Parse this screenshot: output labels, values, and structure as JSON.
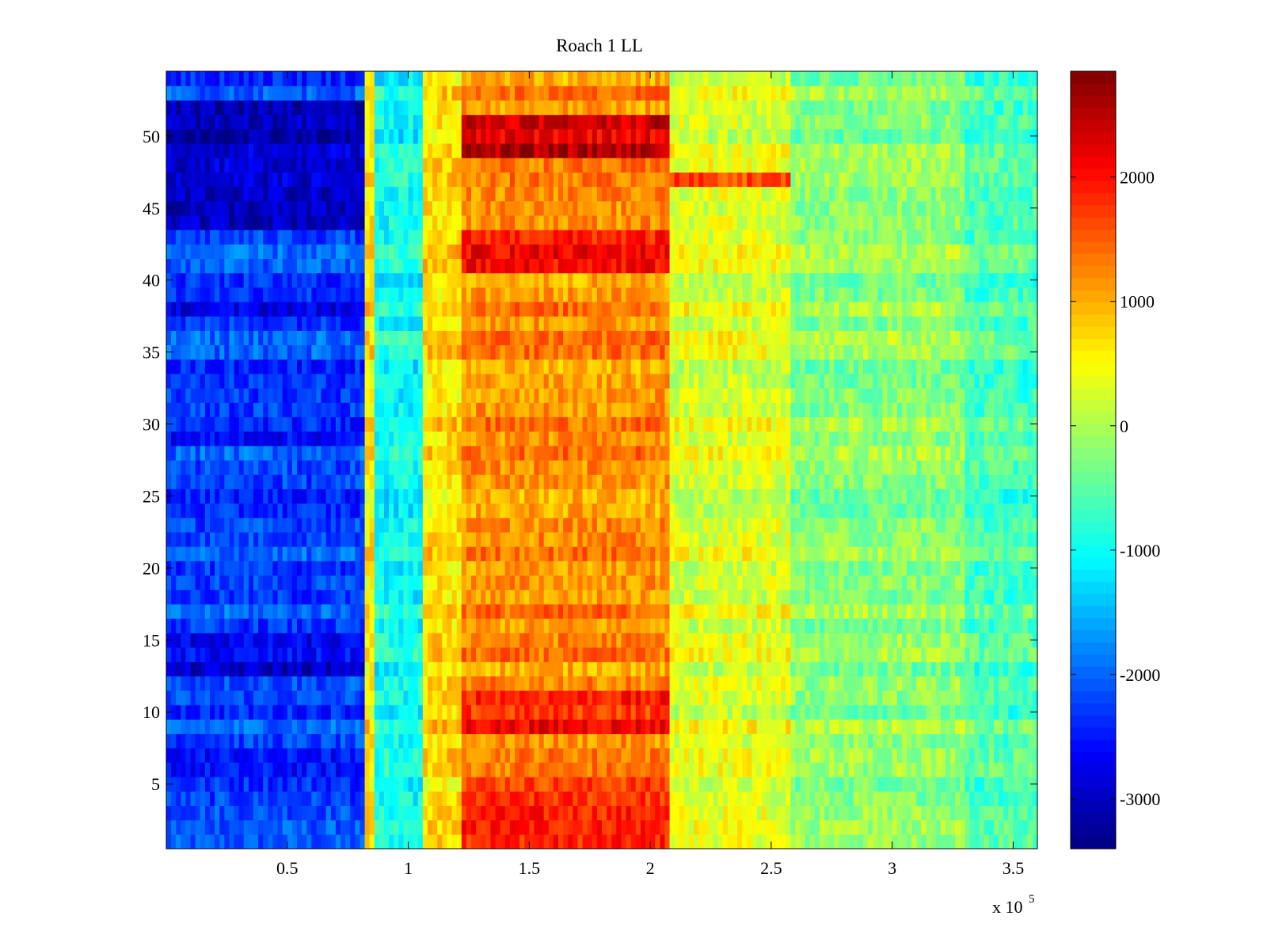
{
  "chart_data": {
    "type": "heatmap",
    "title": "Roach 1 LL",
    "xlabel": "",
    "ylabel": "",
    "x_multiplier_label": "x 10",
    "x_multiplier_exponent": "5",
    "xlim": [
      0,
      3.6
    ],
    "ylim": [
      0.5,
      54.5
    ],
    "xticks": [
      0.5,
      1,
      1.5,
      2,
      2.5,
      3,
      3.5
    ],
    "xtick_labels": [
      "0.5",
      "1",
      "1.5",
      "2",
      "2.5",
      "3",
      "3.5"
    ],
    "yticks": [
      5,
      10,
      15,
      20,
      25,
      30,
      35,
      40,
      45,
      50
    ],
    "ytick_labels": [
      "5",
      "10",
      "15",
      "20",
      "25",
      "30",
      "35",
      "40",
      "45",
      "50"
    ],
    "colorbar": {
      "colormap": "jet",
      "clim": [
        -3400,
        2850
      ],
      "ticks": [
        -3000,
        -2000,
        -1000,
        0,
        1000,
        2000
      ],
      "tick_labels": [
        "-3000",
        "-2000",
        "-1000",
        "0",
        "1000",
        "2000"
      ]
    },
    "rows": 54,
    "column_segments": [
      {
        "x_start": 0.0,
        "x_end": 0.82,
        "approx_value": -2200
      },
      {
        "x_start": 0.82,
        "x_end": 0.86,
        "approx_value": 600
      },
      {
        "x_start": 0.86,
        "x_end": 1.07,
        "approx_value": -1000
      },
      {
        "x_start": 1.07,
        "x_end": 1.23,
        "approx_value": 700
      },
      {
        "x_start": 1.23,
        "x_end": 2.08,
        "approx_value": 1200
      },
      {
        "x_start": 2.08,
        "x_end": 2.58,
        "approx_value": 300
      },
      {
        "x_start": 2.58,
        "x_end": 3.3,
        "approx_value": -200
      },
      {
        "x_start": 3.3,
        "x_end": 3.6,
        "approx_value": -600
      }
    ],
    "row_modifiers": [
      {
        "rows": [
          38,
          38
        ],
        "left_value": -3000
      },
      {
        "rows": [
          44,
          52
        ],
        "left_value": -3000
      },
      {
        "rows": [
          13,
          15
        ],
        "left_value": -2800
      },
      {
        "rows": [
          6,
          7
        ],
        "left_value": -2700
      },
      {
        "rows": [
          29,
          30
        ],
        "left_value": -2600
      },
      {
        "rows": [
          49,
          51
        ],
        "mid_value": 2400
      },
      {
        "rows": [
          41,
          43
        ],
        "mid_value": 1900
      },
      {
        "rows": [
          9,
          11
        ],
        "mid_value": 1900
      },
      {
        "rows": [
          1,
          5
        ],
        "mid_value": 1800
      },
      {
        "rows": [
          47,
          47
        ],
        "right_mid_value": 1500
      }
    ],
    "grid": false,
    "legend": "none"
  }
}
